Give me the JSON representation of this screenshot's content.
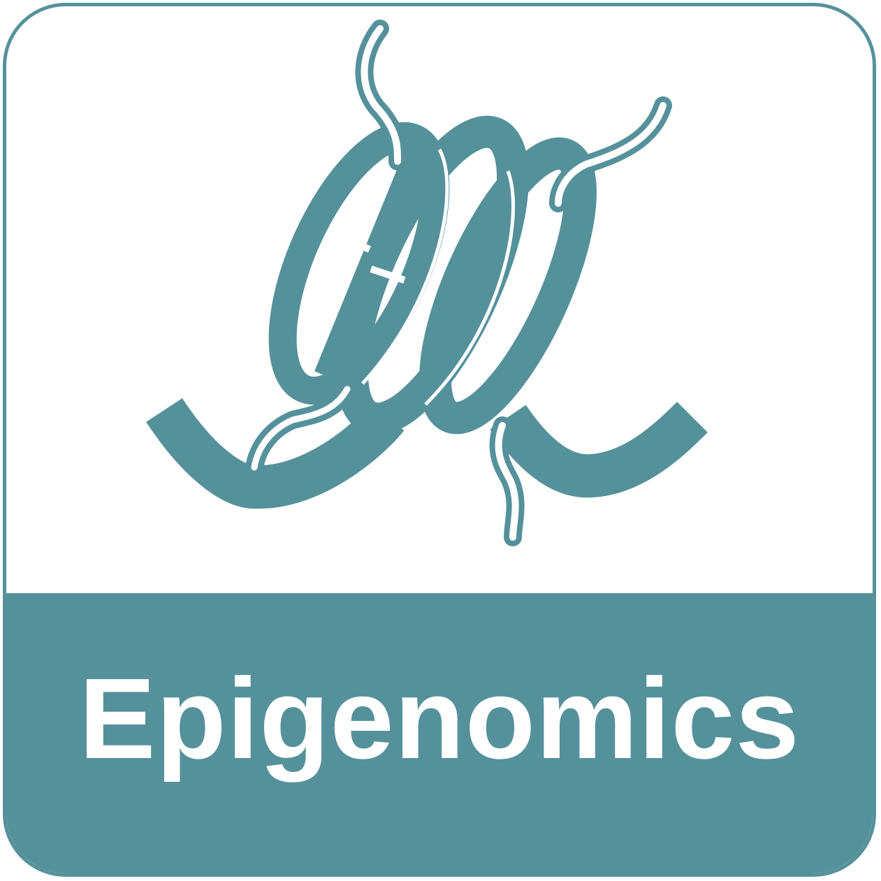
{
  "tile": {
    "label": "Epigenomics",
    "accent_color": "#55919b",
    "icon": "nucleosome-icon"
  }
}
